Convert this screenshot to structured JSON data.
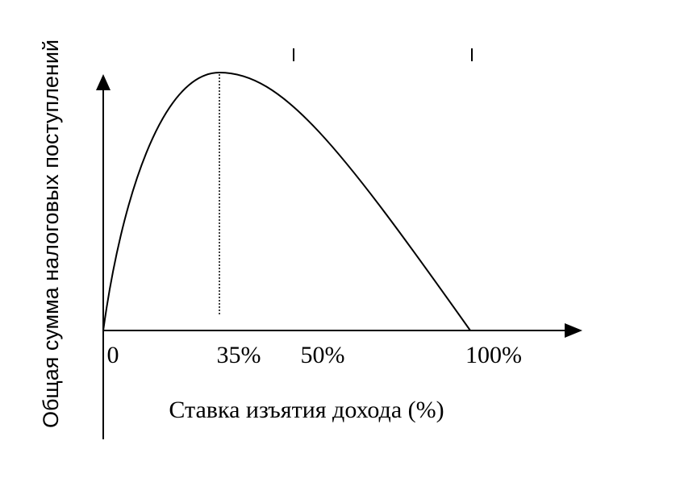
{
  "diagram": {
    "y_axis_title": "Общая сумма налоговых поступлений",
    "x_axis_title": "Ставка изъятия дохода (%)",
    "x_labels": [
      "0",
      "35%",
      "50%",
      "100%"
    ]
  }
}
